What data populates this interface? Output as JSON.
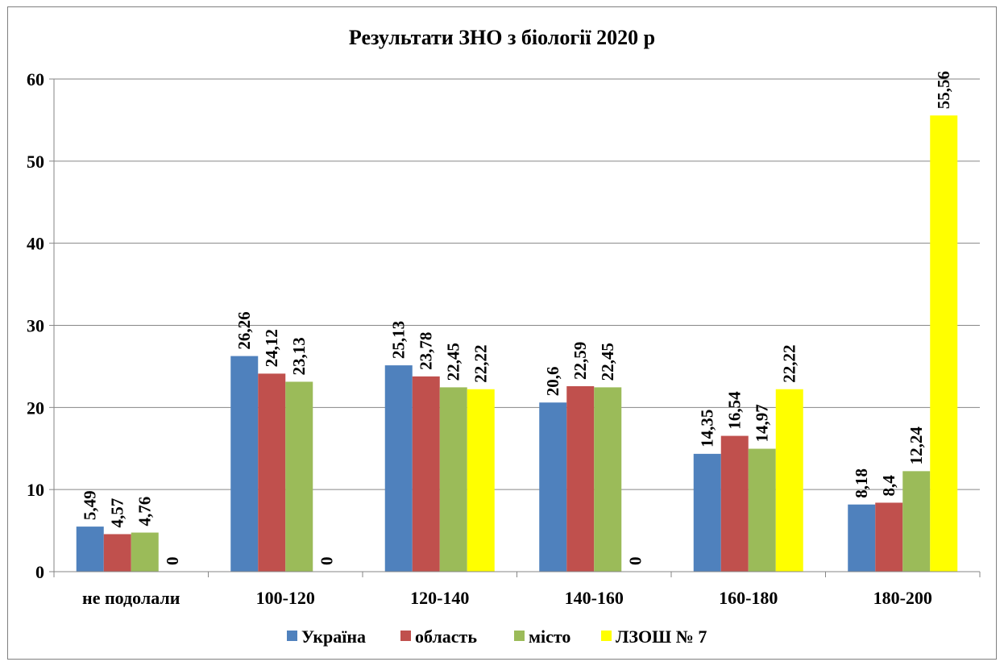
{
  "chart_data": {
    "type": "bar",
    "title": "Результати ЗНО з біології 2020 р",
    "categories": [
      "не подолали",
      "100-120",
      "120-140",
      "140-160",
      "160-180",
      "180-200"
    ],
    "series": [
      {
        "name": "Україна",
        "color": "#4f81bd",
        "values": [
          5.49,
          26.26,
          25.13,
          20.6,
          14.35,
          8.18
        ],
        "labels": [
          "5,49",
          "26,26",
          "25,13",
          "20,6",
          "14,35",
          "8,18"
        ]
      },
      {
        "name": "область",
        "color": "#c0504d",
        "values": [
          4.57,
          24.12,
          23.78,
          22.59,
          16.54,
          8.4
        ],
        "labels": [
          "4,57",
          "24,12",
          "23,78",
          "22,59",
          "16,54",
          "8,4"
        ]
      },
      {
        "name": "місто",
        "color": "#9bbb59",
        "values": [
          4.76,
          23.13,
          22.45,
          22.45,
          14.97,
          12.24
        ],
        "labels": [
          "4,76",
          "23,13",
          "22,45",
          "22,45",
          "14,97",
          "12,24"
        ]
      },
      {
        "name": "ЛЗОШ № 7",
        "color": "#ffff00",
        "values": [
          0,
          0,
          22.22,
          0,
          22.22,
          55.56
        ],
        "labels": [
          "0",
          "0",
          "22,22",
          "0",
          "22,22",
          "55,56"
        ]
      }
    ],
    "ylim": [
      0,
      60
    ],
    "yticks": [
      0,
      10,
      20,
      30,
      40,
      50,
      60
    ],
    "grid": true,
    "legend": "bottom"
  }
}
